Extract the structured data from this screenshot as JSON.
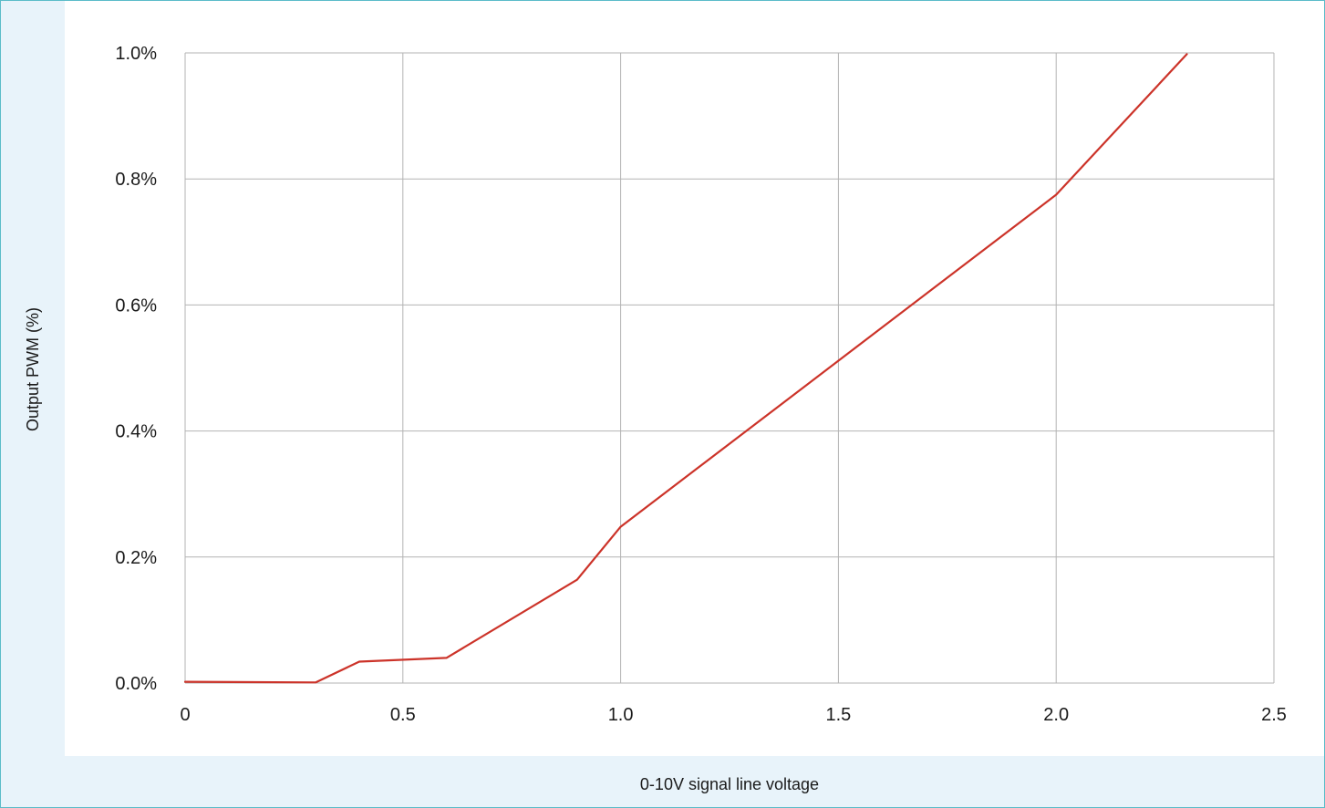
{
  "chart_data": {
    "type": "line",
    "title": "",
    "xlabel": "0-10V signal line voltage",
    "ylabel": "Output PWM (%)",
    "xlim": [
      0,
      2.5
    ],
    "ylim": [
      0,
      1.0
    ],
    "x_ticks": [
      0,
      0.5,
      1.0,
      1.5,
      2.0,
      2.5
    ],
    "x_tick_labels": [
      "0",
      "0.5",
      "1.0",
      "1.5",
      "2.0",
      "2.5"
    ],
    "y_ticks": [
      0,
      0.2,
      0.4,
      0.6,
      0.8,
      1.0
    ],
    "y_tick_labels": [
      "0.0%",
      "0.2%",
      "0.4%",
      "0.6%",
      "0.8%",
      "1.0%"
    ],
    "grid": true,
    "legend": "none",
    "series": [
      {
        "color": "#cc3329",
        "x": [
          0,
          0.3,
          0.4,
          0.6,
          0.9,
          1.0,
          2.0,
          2.3
        ],
        "y": [
          0.002,
          0.001,
          0.034,
          0.04,
          0.164,
          0.248,
          0.775,
          0.998
        ]
      }
    ]
  }
}
